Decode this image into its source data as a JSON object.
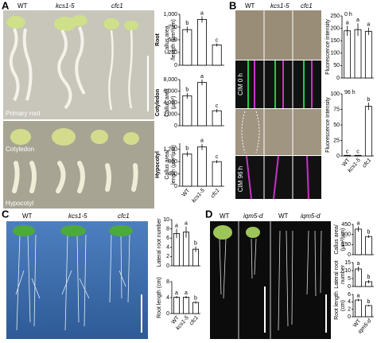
{
  "figure": {
    "panels": [
      "A",
      "B",
      "C",
      "D"
    ],
    "A": {
      "genotypes": [
        "WT",
        "kcs1-5",
        "cfc1"
      ],
      "organs": [
        "Primary root",
        "Cotyledon",
        "Hypocotyl"
      ]
    },
    "B": {
      "genotypes": [
        "WT",
        "kcs1-5",
        "cfc1"
      ],
      "conditions": [
        "CIM 0 h",
        "CIM 96 h"
      ]
    },
    "C": {
      "genotypes": [
        "WT",
        "kcs1-5",
        "cfc1"
      ]
    },
    "D": {
      "genotypes": [
        "WT",
        "iqm5-d",
        "WT",
        "iqm5-d"
      ]
    }
  },
  "chart_data": [
    {
      "type": "bar",
      "title": "Root",
      "ylabel": [
        "Callus area",
        "/length (µm²/µm)"
      ],
      "values": [
        700,
        900,
        400
      ],
      "errors": [
        60,
        60,
        30
      ],
      "annotations": [
        "b",
        "a",
        "c"
      ],
      "color": "#ffffff",
      "ylim": [
        0,
        1000
      ],
      "yticks": [
        0,
        250,
        500,
        750,
        {
          "value": 1000,
          "label": "1,000"
        }
      ]
    },
    {
      "type": "bar",
      "title": "Cotyledon",
      "ylabel": [
        "Callus area",
        "(µm²)"
      ],
      "values": [
        5200,
        7500,
        2600
      ],
      "errors": [
        500,
        500,
        300
      ],
      "annotations": [
        "b",
        "a",
        "c"
      ],
      "color": "#ffffff",
      "ylim": [
        0,
        8000
      ],
      "yticks": [
        0,
        {
          "value": 2000,
          "label": "2,000"
        },
        {
          "value": 4000,
          "label": "4,000"
        },
        {
          "value": 6000,
          "label": "6,000"
        },
        {
          "value": 8000,
          "label": "8,000"
        }
      ]
    },
    {
      "type": "bar",
      "title": "Hypocotyl",
      "ylabel": [
        "Callus area/",
        "length (µm²/µm)"
      ],
      "categories": [
        "WT",
        "kcs1-5",
        "cfc1"
      ],
      "values": [
        1050,
        1280,
        800
      ],
      "errors": [
        80,
        100,
        50
      ],
      "annotations": [
        "b",
        "a",
        "c"
      ],
      "color": "#ffffff",
      "ylim": [
        0,
        1400
      ],
      "yticks": [
        0,
        400,
        800,
        {
          "value": 1200,
          "label": "1,200"
        }
      ]
    },
    {
      "type": "bar",
      "title": "0 h",
      "ylabel": [
        "Fluorescence intensity"
      ],
      "values": [
        190,
        195,
        188
      ],
      "errors": [
        20,
        25,
        15
      ],
      "annotations": [
        "a",
        "a",
        "a"
      ],
      "color": "#ffffff",
      "ylim": [
        0,
        250
      ],
      "yticks": [
        0,
        50,
        100,
        150,
        200,
        250
      ]
    },
    {
      "type": "bar",
      "title": "96 h",
      "ylabel": [
        "Fluorescence intensity"
      ],
      "categories": [
        "WT",
        "kcs1-5",
        "cfc1"
      ],
      "values": [
        1,
        1,
        80
      ],
      "errors": [
        0.5,
        0.5,
        6
      ],
      "annotations": [
        "c",
        "c",
        "b"
      ],
      "color": "#ffffff",
      "ylim": [
        0,
        100
      ],
      "yticks": [
        0,
        25,
        50,
        75,
        100
      ]
    },
    {
      "type": "bar",
      "ylabel": [
        "Lateral root number"
      ],
      "values": [
        7,
        7.3,
        3.6
      ],
      "errors": [
        1,
        1.2,
        0.6
      ],
      "annotations": [
        "a",
        "a",
        "b"
      ],
      "color": "#ffffff",
      "ylim": [
        0,
        10
      ],
      "yticks": [
        0,
        2,
        4,
        6,
        8,
        10
      ]
    },
    {
      "type": "bar",
      "ylabel": [
        "Root length (cm)"
      ],
      "categories": [
        "WT",
        "kcs1-5",
        "cfc1"
      ],
      "values": [
        4.1,
        4.1,
        2.8
      ],
      "errors": [
        0.3,
        0.3,
        0.3
      ],
      "annotations": [
        "a",
        "a",
        "b"
      ],
      "color": "#ffffff",
      "ylim": [
        0,
        8
      ],
      "yticks": [
        0,
        4,
        8
      ]
    },
    {
      "type": "bar",
      "ylabel": [
        "Callus area/",
        "(µm²/µm)"
      ],
      "values": [
        380,
        270
      ],
      "errors": [
        40,
        20
      ],
      "annotations": [
        "a",
        "b"
      ],
      "color": "#ffffff",
      "ylim": [
        0,
        450
      ],
      "yticks": [
        0,
        150,
        300,
        450
      ]
    },
    {
      "type": "bar",
      "ylabel": [
        "Lateral root",
        "number"
      ],
      "values": [
        11,
        3
      ],
      "errors": [
        1.5,
        1
      ],
      "annotations": [
        "a",
        "b"
      ],
      "color": "#ffffff",
      "ylim": [
        0,
        15
      ],
      "yticks": [
        0,
        5,
        10,
        15
      ]
    },
    {
      "type": "bar",
      "ylabel": [
        "Root length",
        "(cm)"
      ],
      "categories": [
        "WT",
        "iqm5-d"
      ],
      "values": [
        4.5,
        3
      ],
      "errors": [
        0.3,
        0.2
      ],
      "annotations": [
        "a",
        "b"
      ],
      "color": "#ffffff",
      "ylim": [
        0,
        6
      ],
      "yticks": [
        0,
        2,
        4,
        6
      ]
    }
  ]
}
